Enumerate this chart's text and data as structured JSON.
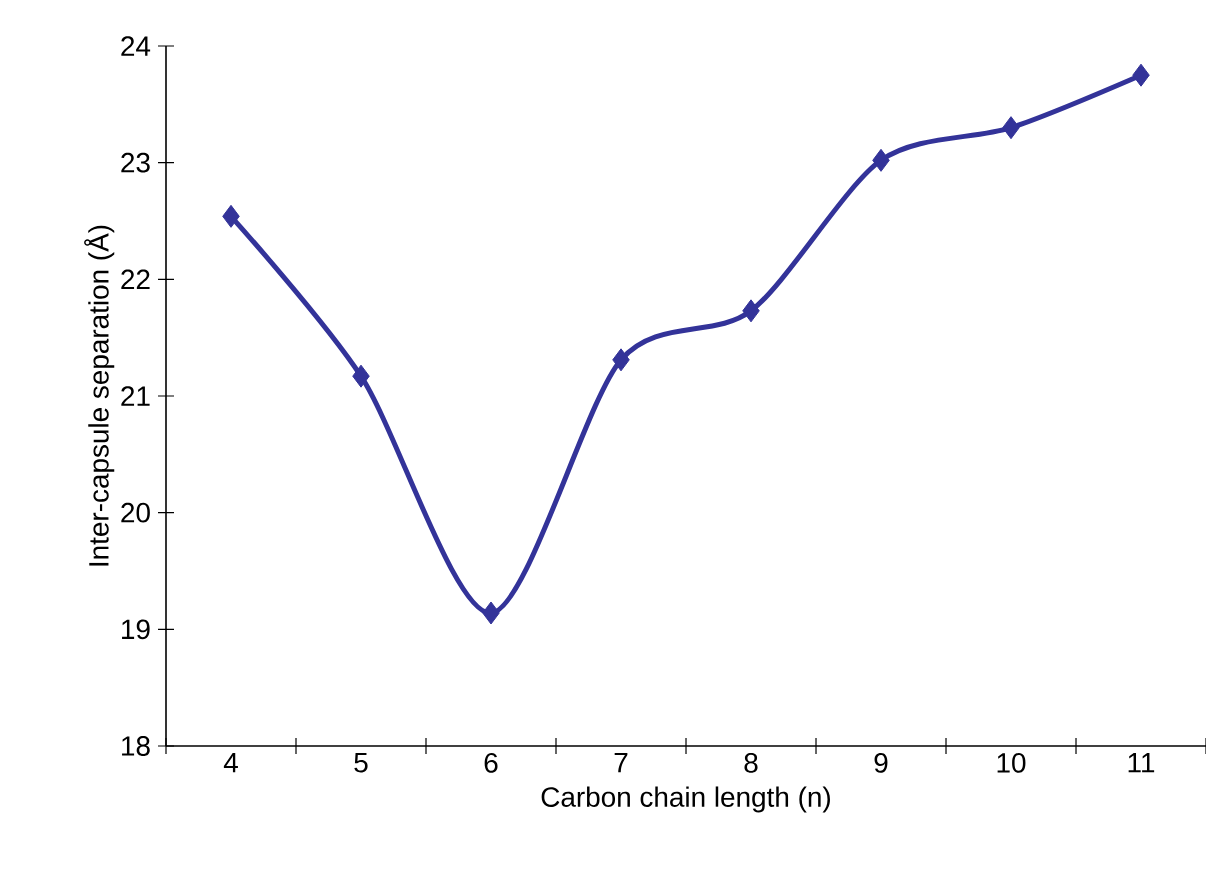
{
  "chart_data": {
    "type": "line",
    "xlabel": "Carbon chain length (n)",
    "ylabel": "Inter-capsule separation (Å)",
    "categories": [
      "4",
      "5",
      "6",
      "7",
      "8",
      "9",
      "10",
      "11"
    ],
    "series": [
      {
        "color": "#333399",
        "values": [
          22.54,
          21.17,
          19.14,
          21.31,
          21.73,
          23.02,
          23.3,
          23.75
        ]
      }
    ],
    "ylim": [
      18,
      24
    ],
    "yticks": [
      18,
      19,
      20,
      21,
      22,
      23,
      24
    ],
    "marker": "diamond",
    "line_style": "solid",
    "grid": false
  }
}
